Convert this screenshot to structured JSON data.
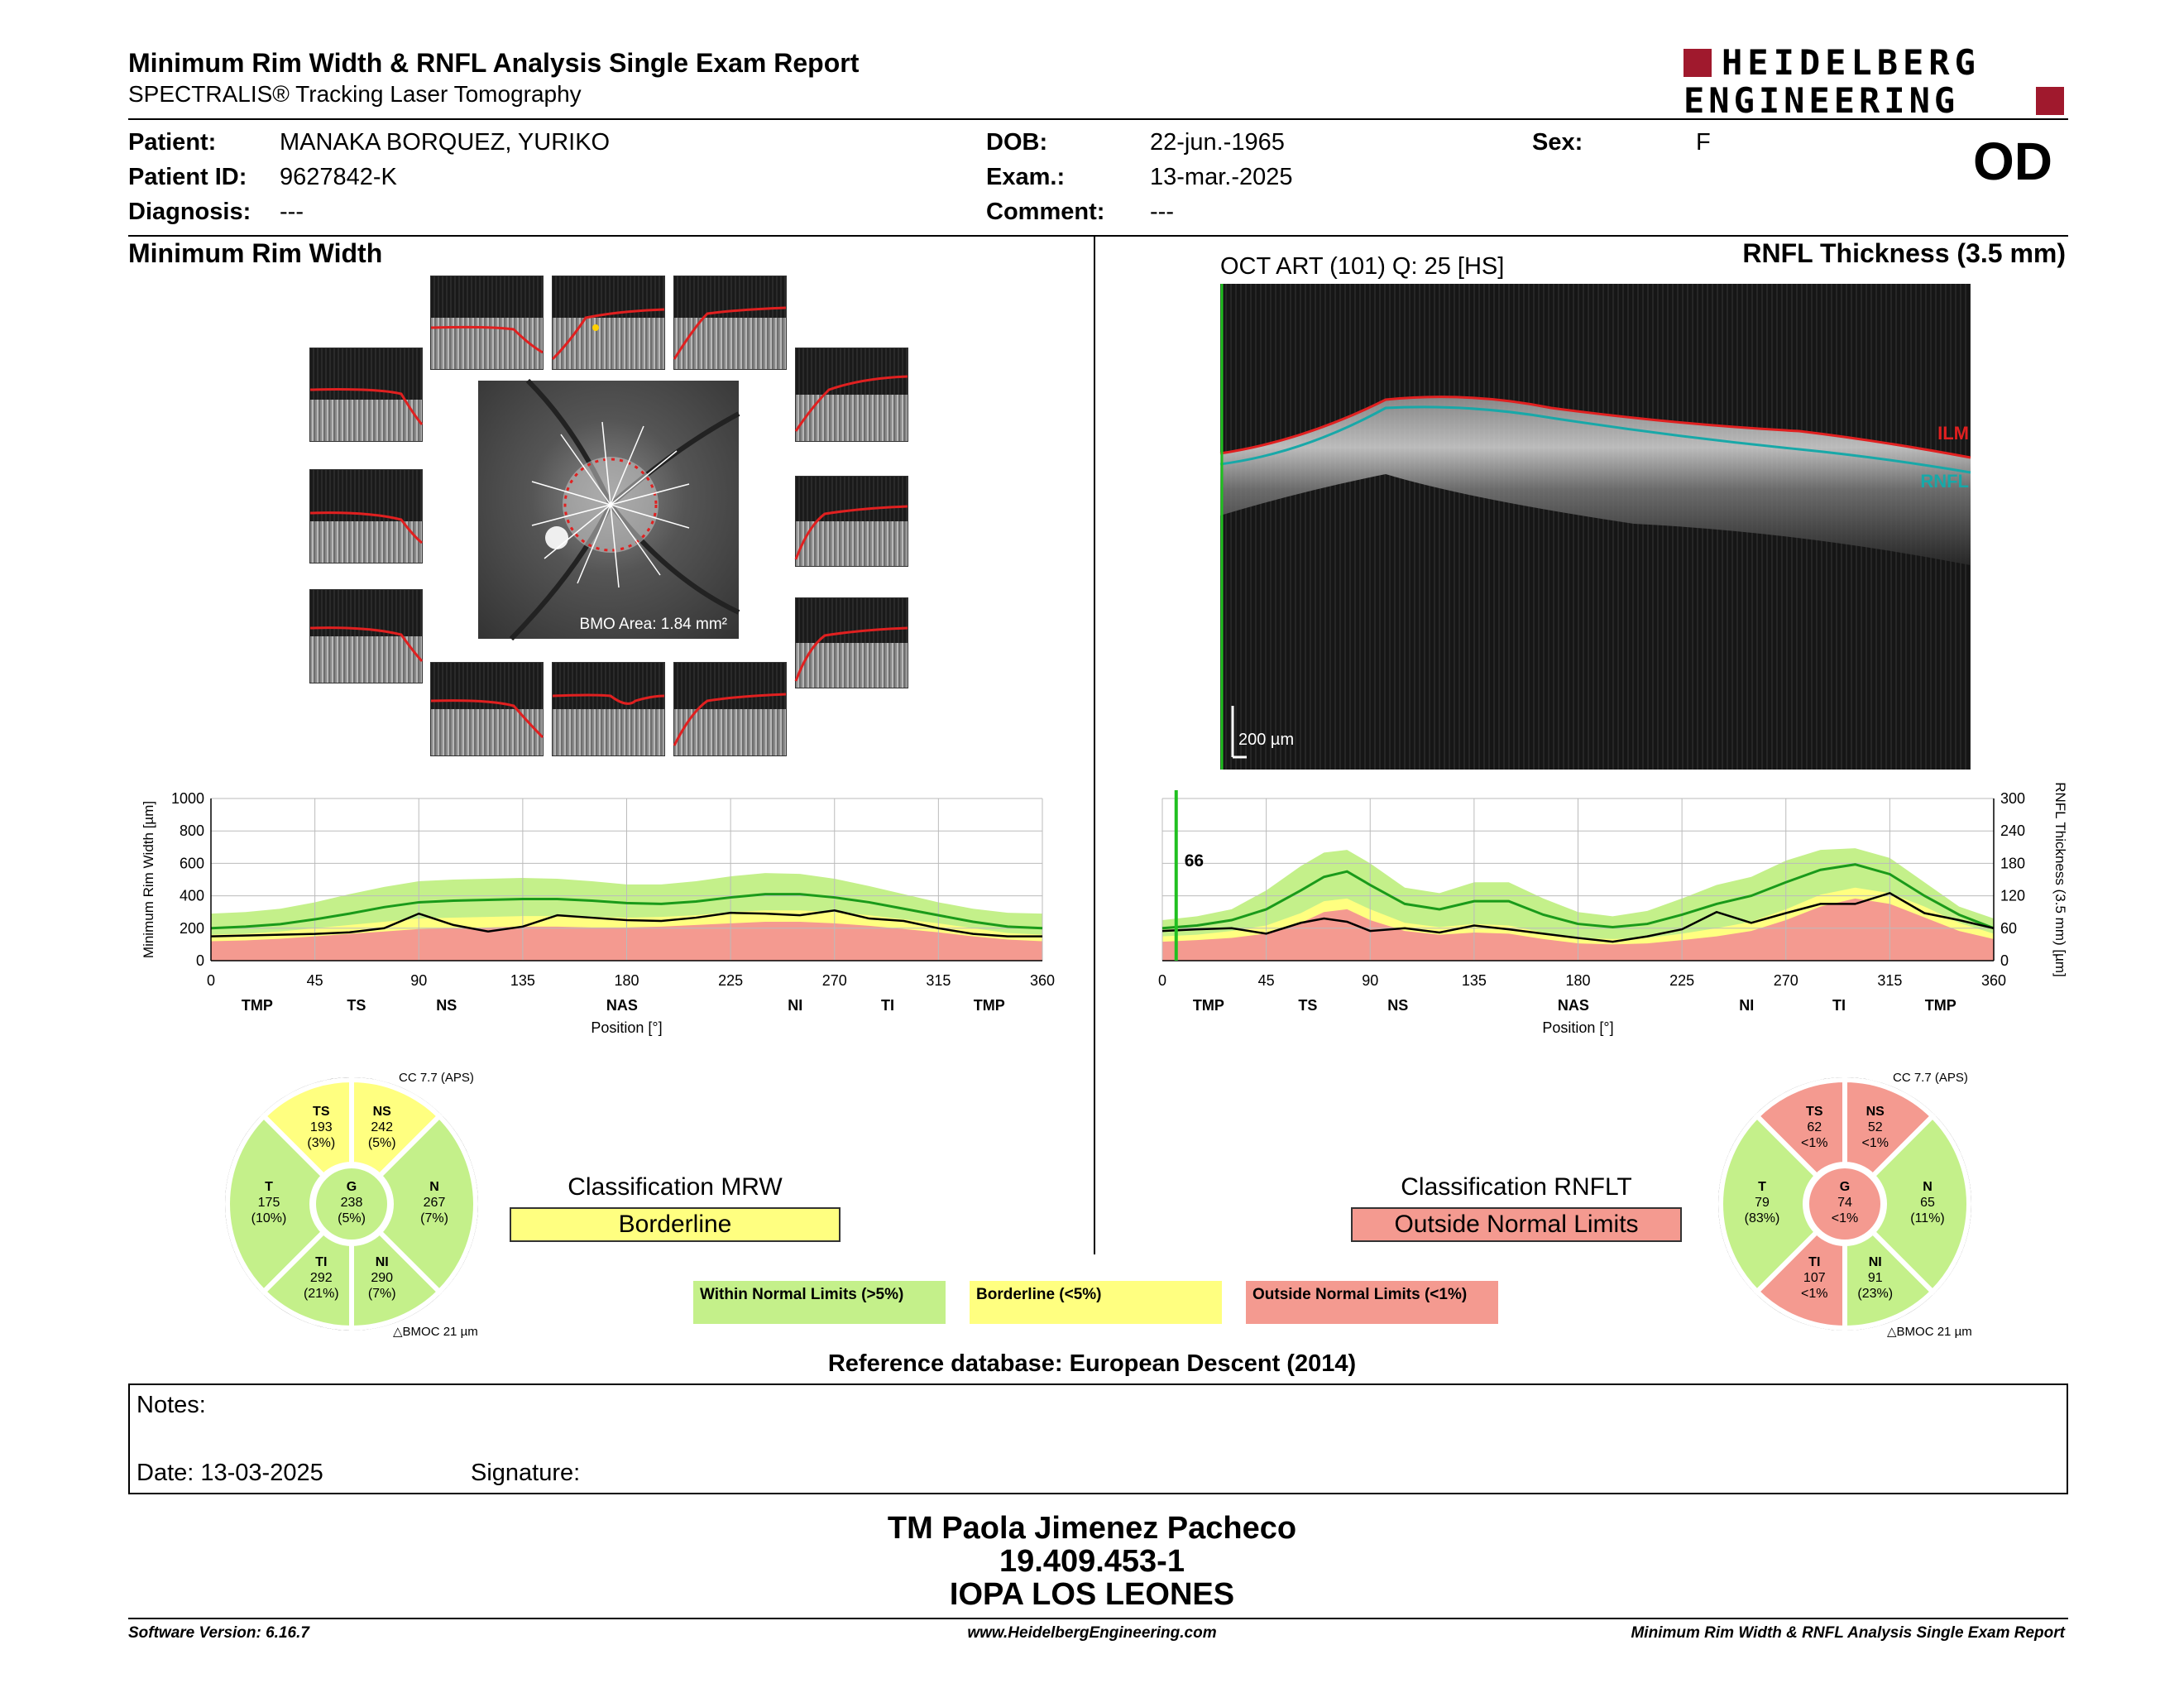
{
  "header": {
    "title": "Minimum Rim Width & RNFL Analysis Single Exam Report",
    "subtitle": "SPECTRALIS® Tracking Laser Tomography",
    "logo_line1": "HEIDELBERG",
    "logo_line2": "ENGINEERING",
    "eye": "OD"
  },
  "patient": {
    "patient_label": "Patient:",
    "patient_value": "MANAKA BORQUEZ, YURIKO",
    "id_label": "Patient ID:",
    "id_value": "9627842-K",
    "diagnosis_label": "Diagnosis:",
    "diagnosis_value": "---",
    "dob_label": "DOB:",
    "dob_value": "22-jun.-1965",
    "exam_label": "Exam.:",
    "exam_value": "13-mar.-2025",
    "comment_label": "Comment:",
    "comment_value": "---",
    "sex_label": "Sex:",
    "sex_value": "F"
  },
  "mrw": {
    "section_title": "Minimum Rim Width",
    "bmo_area": "BMO Area: 1.84 mm²",
    "classification_label": "Classification MRW",
    "classification_value": "Borderline",
    "classification_color": "#ffff80",
    "cc": "CC 7.7 (APS)",
    "bmoc": "BMOC 21 µm",
    "sectors": {
      "TS": {
        "label": "TS",
        "value": "193",
        "pct": "(3%)",
        "color": "#ffff80"
      },
      "NS": {
        "label": "NS",
        "value": "242",
        "pct": "(5%)",
        "color": "#ffff80"
      },
      "T": {
        "label": "T",
        "value": "175",
        "pct": "(10%)",
        "color": "#c4f08a"
      },
      "G": {
        "label": "G",
        "value": "238",
        "pct": "(5%)",
        "color": "#c4f08a"
      },
      "N": {
        "label": "N",
        "value": "267",
        "pct": "(7%)",
        "color": "#c4f08a"
      },
      "TI": {
        "label": "TI",
        "value": "292",
        "pct": "(21%)",
        "color": "#c4f08a"
      },
      "NI": {
        "label": "NI",
        "value": "290",
        "pct": "(7%)",
        "color": "#c4f08a"
      }
    }
  },
  "rnfl": {
    "section_title": "RNFL Thickness (3.5 mm)",
    "oct_label": "OCT ART (101) Q: 25 [HS]",
    "ilm": "ILM",
    "rnfl_tag": "RNFL",
    "scale": "200 µm",
    "marker": "66",
    "classification_label": "Classification RNFLT",
    "classification_value": "Outside Normal Limits",
    "classification_color": "#f49a90",
    "cc": "CC 7.7 (APS)",
    "bmoc": "BMOC 21 µm",
    "sectors": {
      "TS": {
        "label": "TS",
        "value": "62",
        "pct": "<1%",
        "color": "#f49a90"
      },
      "NS": {
        "label": "NS",
        "value": "52",
        "pct": "<1%",
        "color": "#f49a90"
      },
      "T": {
        "label": "T",
        "value": "79",
        "pct": "(83%)",
        "color": "#c4f08a"
      },
      "G": {
        "label": "G",
        "value": "74",
        "pct": "<1%",
        "color": "#f49a90"
      },
      "N": {
        "label": "N",
        "value": "65",
        "pct": "(11%)",
        "color": "#c4f08a"
      },
      "TI": {
        "label": "TI",
        "value": "107",
        "pct": "<1%",
        "color": "#f49a90"
      },
      "NI": {
        "label": "NI",
        "value": "91",
        "pct": "(23%)",
        "color": "#c4f08a"
      }
    }
  },
  "legend": {
    "within": "Within Normal Limits (>5%)",
    "borderline": "Borderline (<5%)",
    "outside": "Outside Normal Limits (<1%)",
    "within_color": "#c4f08a",
    "borderline_color": "#ffff80",
    "outside_color": "#f49a90"
  },
  "reference": "Reference database: European Descent (2014)",
  "notes": {
    "notes_label": "Notes:",
    "date_label": "Date: 13-03-2025",
    "signature_label": "Signature:"
  },
  "signature_block": {
    "name": "TM Paola Jimenez Pacheco",
    "rut": "19.409.453-1",
    "institution": "IOPA LOS LEONES"
  },
  "footer": {
    "version": "Software Version: 6.16.7",
    "url": "www.HeidelbergEngineering.com",
    "report": "Minimum Rim Width & RNFL Analysis Single Exam Report"
  },
  "chart_data": [
    {
      "type": "line",
      "ylabel": "Minimum Rim Width [µm]",
      "xlabel": "Position [°]",
      "xlim": [
        0,
        360
      ],
      "ylim": [
        0,
        1000
      ],
      "xticks": [
        0,
        45,
        90,
        135,
        180,
        225,
        270,
        315,
        360
      ],
      "yticks": [
        0,
        200,
        400,
        600,
        800,
        1000
      ],
      "sector_labels": [
        {
          "label": "TMP",
          "x": 20
        },
        {
          "label": "TS",
          "x": 63
        },
        {
          "label": "NS",
          "x": 102
        },
        {
          "label": "NAS",
          "x": 178
        },
        {
          "label": "NI",
          "x": 253
        },
        {
          "label": "TI",
          "x": 293
        },
        {
          "label": "TMP",
          "x": 337
        }
      ],
      "x": [
        0,
        15,
        30,
        45,
        60,
        75,
        90,
        105,
        120,
        135,
        150,
        165,
        180,
        195,
        210,
        225,
        240,
        255,
        270,
        285,
        300,
        315,
        330,
        345,
        360
      ],
      "bands": {
        "red_upper": [
          120,
          125,
          135,
          150,
          165,
          180,
          195,
          200,
          205,
          210,
          210,
          205,
          205,
          210,
          220,
          230,
          240,
          240,
          230,
          215,
          195,
          175,
          150,
          130,
          120
        ],
        "yellow_upper": [
          160,
          165,
          180,
          200,
          220,
          240,
          260,
          265,
          270,
          275,
          275,
          270,
          265,
          270,
          280,
          300,
          310,
          310,
          300,
          280,
          255,
          230,
          200,
          170,
          160
        ],
        "normal_mean": [
          200,
          210,
          225,
          255,
          290,
          330,
          360,
          370,
          375,
          380,
          380,
          370,
          355,
          350,
          365,
          390,
          410,
          410,
          390,
          360,
          320,
          280,
          240,
          210,
          200
        ],
        "green_upper": [
          290,
          300,
          320,
          360,
          410,
          455,
          490,
          500,
          505,
          510,
          505,
          490,
          470,
          470,
          490,
          520,
          540,
          535,
          505,
          460,
          410,
          360,
          320,
          295,
          290
        ]
      },
      "series": [
        {
          "values": [
            150,
            155,
            160,
            165,
            175,
            200,
            290,
            220,
            180,
            210,
            280,
            265,
            250,
            245,
            265,
            295,
            290,
            280,
            310,
            260,
            245,
            200,
            165,
            150,
            150
          ],
          "color": "#000"
        }
      ]
    },
    {
      "type": "line",
      "ylabel": "RNFL Thickness (3.5 mm) [µm]",
      "xlabel": "Position [°]",
      "xlim": [
        0,
        360
      ],
      "ylim": [
        0,
        300
      ],
      "xticks": [
        0,
        45,
        90,
        135,
        180,
        225,
        270,
        315,
        360
      ],
      "yticks": [
        0,
        60,
        120,
        180,
        240,
        300
      ],
      "sector_labels": [
        {
          "label": "TMP",
          "x": 20
        },
        {
          "label": "TS",
          "x": 63
        },
        {
          "label": "NS",
          "x": 102
        },
        {
          "label": "NAS",
          "x": 178
        },
        {
          "label": "NI",
          "x": 253
        },
        {
          "label": "TI",
          "x": 293
        },
        {
          "label": "TMP",
          "x": 337
        }
      ],
      "x": [
        0,
        15,
        30,
        45,
        60,
        70,
        80,
        90,
        105,
        120,
        135,
        150,
        165,
        180,
        195,
        210,
        225,
        240,
        255,
        270,
        285,
        300,
        315,
        330,
        345,
        360
      ],
      "bands": {
        "red_upper": [
          35,
          38,
          42,
          50,
          70,
          90,
          95,
          75,
          55,
          48,
          52,
          50,
          40,
          32,
          30,
          32,
          38,
          45,
          55,
          75,
          100,
          115,
          105,
          80,
          55,
          40
        ],
        "yellow_upper": [
          45,
          48,
          55,
          65,
          88,
          110,
          115,
          95,
          70,
          62,
          68,
          65,
          52,
          42,
          40,
          42,
          50,
          60,
          72,
          95,
          122,
          135,
          125,
          100,
          70,
          50
        ],
        "normal_mean": [
          60,
          65,
          75,
          95,
          130,
          155,
          165,
          140,
          105,
          95,
          110,
          110,
          85,
          68,
          62,
          68,
          85,
          105,
          120,
          145,
          168,
          178,
          160,
          120,
          85,
          60
        ],
        "green_upper": [
          75,
          82,
          95,
          130,
          175,
          200,
          205,
          180,
          135,
          125,
          145,
          145,
          115,
          90,
          82,
          92,
          115,
          140,
          155,
          185,
          205,
          208,
          190,
          145,
          100,
          78
        ]
      },
      "series": [
        {
          "values": [
            55,
            58,
            60,
            50,
            70,
            78,
            72,
            55,
            60,
            52,
            65,
            58,
            50,
            42,
            35,
            45,
            58,
            90,
            70,
            88,
            105,
            105,
            125,
            88,
            75,
            60
          ],
          "color": "#000"
        }
      ],
      "marker_x": 6
    }
  ]
}
